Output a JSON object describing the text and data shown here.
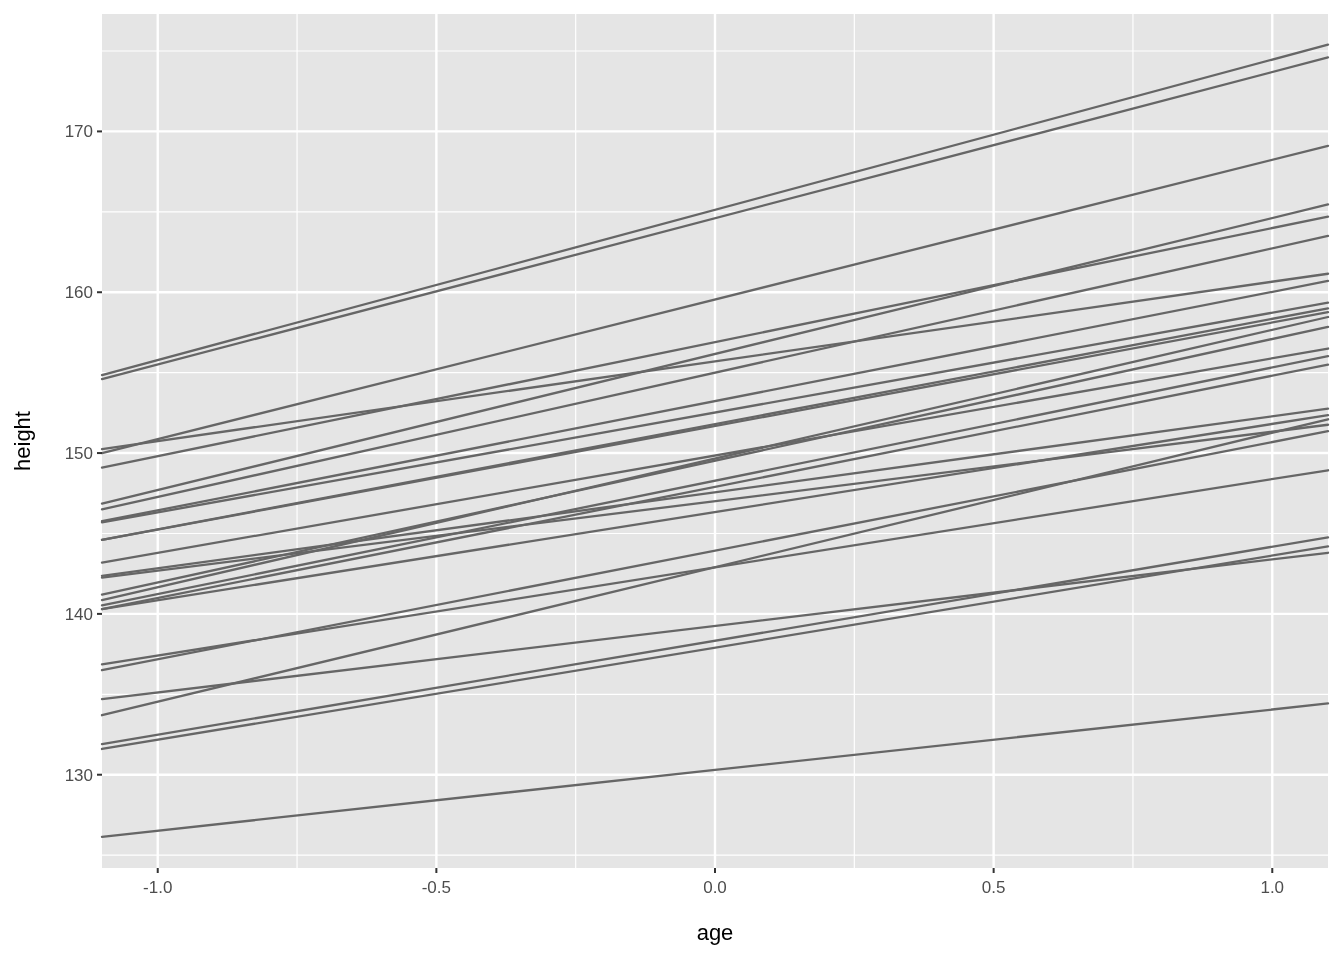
{
  "chart_data": {
    "type": "line",
    "xlabel": "age",
    "ylabel": "height",
    "x": [
      -1.1,
      1.1
    ],
    "xlim": [
      -1.1,
      1.1
    ],
    "ylim": [
      124.2,
      177.3
    ],
    "xticks": [
      {
        "value": -1,
        "label": "-1.0"
      },
      {
        "value": -0.75,
        "label": null
      },
      {
        "value": -0.5,
        "label": "-0.5"
      },
      {
        "value": -0.25,
        "label": null
      },
      {
        "value": 0,
        "label": "0.0"
      },
      {
        "value": 0.25,
        "label": null
      },
      {
        "value": 0.5,
        "label": "0.5"
      },
      {
        "value": 0.75,
        "label": null
      },
      {
        "value": 1,
        "label": "1.0"
      }
    ],
    "yticks": [
      {
        "value": 125,
        "label": null
      },
      130,
      {
        "value": 135,
        "label": null
      },
      140,
      {
        "value": 145,
        "label": null
      },
      150,
      {
        "value": 155,
        "label": null
      },
      160,
      {
        "value": 165,
        "label": null
      },
      170,
      {
        "value": 175,
        "label": null
      }
    ],
    "grid": true,
    "series": [
      {
        "color": "#666666",
        "values": [
          154.85,
          175.4
        ]
      },
      {
        "color": "#666666",
        "values": [
          154.6,
          174.6
        ]
      },
      {
        "color": "#666666",
        "values": [
          150.0,
          169.1
        ]
      },
      {
        "color": "#666666",
        "values": [
          150.25,
          161.15
        ]
      },
      {
        "color": "#666666",
        "values": [
          149.1,
          164.7
        ]
      },
      {
        "color": "#666666",
        "values": [
          146.86,
          165.46
        ]
      },
      {
        "color": "#666666",
        "values": [
          146.5,
          163.5
        ]
      },
      {
        "color": "#666666",
        "values": [
          145.76,
          160.7
        ]
      },
      {
        "color": "#666666",
        "values": [
          145.69,
          159.35
        ]
      },
      {
        "color": "#666666",
        "values": [
          144.6,
          159.0
        ]
      },
      {
        "color": "#666666",
        "values": [
          144.6,
          158.76
        ]
      },
      {
        "color": "#666666",
        "values": [
          143.19,
          156.5
        ]
      },
      {
        "color": "#666666",
        "values": [
          142.36,
          152.76
        ]
      },
      {
        "color": "#666666",
        "values": [
          142.26,
          151.76
        ]
      },
      {
        "color": "#666666",
        "values": [
          141.2,
          157.85
        ]
      },
      {
        "color": "#666666",
        "values": [
          140.86,
          158.46
        ]
      },
      {
        "color": "#666666",
        "values": [
          140.53,
          156.03
        ]
      },
      {
        "color": "#666666",
        "values": [
          140.3,
          155.5
        ]
      },
      {
        "color": "#666666",
        "values": [
          140.3,
          152.36
        ]
      },
      {
        "color": "#666666",
        "values": [
          136.86,
          148.93
        ]
      },
      {
        "color": "#666666",
        "values": [
          136.5,
          151.36
        ]
      },
      {
        "color": "#666666",
        "values": [
          133.7,
          152.1
        ]
      },
      {
        "color": "#666666",
        "values": [
          134.7,
          143.8
        ]
      },
      {
        "color": "#666666",
        "values": [
          131.9,
          144.76
        ]
      },
      {
        "color": "#666666",
        "values": [
          131.6,
          144.2
        ]
      },
      {
        "color": "#666666",
        "x": [
          -1.1,
          0,
          1.1
        ],
        "values": [
          126.14,
          130.3,
          134.43
        ]
      }
    ]
  }
}
